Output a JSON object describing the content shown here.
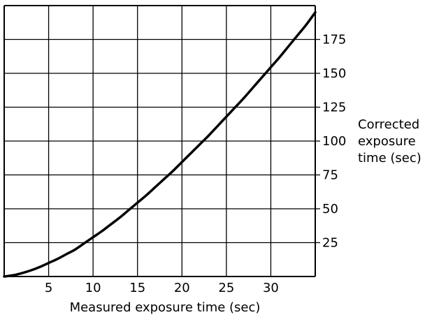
{
  "chart_data": {
    "type": "line",
    "title": "",
    "xlabel": "Measured exposure time (sec)",
    "ylabel_lines": [
      "Corrected",
      "exposure",
      "time (sec)"
    ],
    "xlim": [
      0,
      35
    ],
    "ylim": [
      0,
      200
    ],
    "x_ticks": [
      5,
      10,
      15,
      20,
      25,
      30
    ],
    "y_ticks": [
      25,
      50,
      75,
      100,
      125,
      150,
      175
    ],
    "x_gridlines": [
      0,
      5,
      10,
      15,
      20,
      25,
      30,
      35
    ],
    "y_gridlines": [
      0,
      25,
      50,
      75,
      100,
      125,
      150,
      175,
      200
    ],
    "grid": true,
    "y_axis_side": "right",
    "line_color": "#000000",
    "series": [
      {
        "x": [
          0,
          1,
          2,
          3,
          4,
          5,
          6,
          7,
          8,
          9,
          10,
          11,
          12,
          13,
          14,
          15,
          16,
          17,
          18,
          19,
          20,
          21,
          22,
          23,
          24,
          25,
          26,
          27,
          28,
          29,
          30,
          31,
          32,
          33,
          34,
          35
        ],
        "y": [
          0,
          0.9,
          2.5,
          4.5,
          7,
          10,
          13,
          16.5,
          20,
          24.5,
          29,
          33.5,
          38.5,
          43.5,
          49,
          54.5,
          60,
          66,
          72,
          78,
          84.5,
          91,
          97.5,
          104,
          111,
          118,
          125,
          132,
          139.5,
          147,
          154.5,
          162,
          170,
          178,
          186,
          195
        ]
      }
    ]
  }
}
